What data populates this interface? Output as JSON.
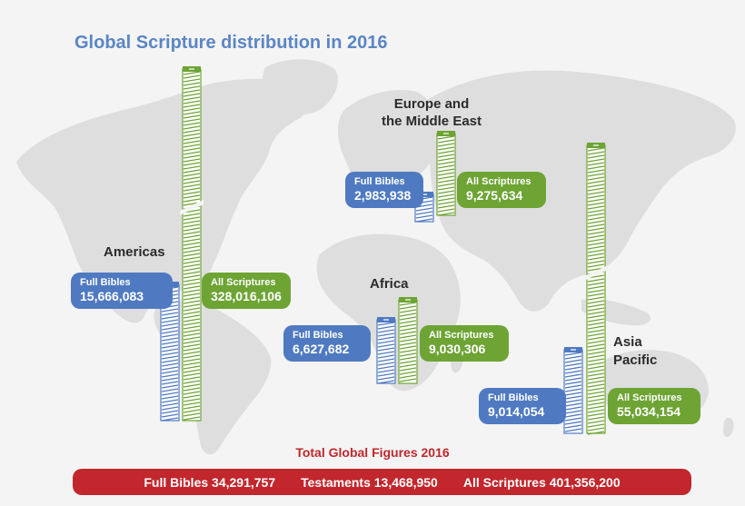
{
  "title": "Global Scripture distribution in 2016",
  "colors": {
    "blue": "#4f7ac1",
    "green": "#6da434",
    "red": "#c1272d",
    "map": "#dcdcdc"
  },
  "chart_data": {
    "type": "bar",
    "title": "Global Scripture distribution in 2016",
    "categories": [
      "Americas",
      "Europe and the Middle East",
      "Africa",
      "Asia Pacific"
    ],
    "series": [
      {
        "name": "Full Bibles",
        "values": [
          15666083,
          2983938,
          6627682,
          9014054
        ]
      },
      {
        "name": "All Scriptures",
        "values": [
          328016106,
          9275634,
          9030306,
          55034154
        ]
      }
    ]
  },
  "regions": [
    {
      "name_lines": [
        "Americas"
      ],
      "full_bibles_label": "Full Bibles",
      "full_bibles": "15,666,083",
      "all_scriptures_label": "All Scriptures",
      "all_scriptures": "328,016,106"
    },
    {
      "name_lines": [
        "Europe and",
        "the Middle East"
      ],
      "full_bibles_label": "Full Bibles",
      "full_bibles": "2,983,938",
      "all_scriptures_label": "All Scriptures",
      "all_scriptures": "9,275,634"
    },
    {
      "name_lines": [
        "Africa"
      ],
      "full_bibles_label": "Full Bibles",
      "full_bibles": "6,627,682",
      "all_scriptures_label": "All Scriptures",
      "all_scriptures": "9,030,306"
    },
    {
      "name_lines": [
        "Asia",
        "Pacific"
      ],
      "full_bibles_label": "Full Bibles",
      "full_bibles": "9,014,054",
      "all_scriptures_label": "All Scriptures",
      "all_scriptures": "55,034,154"
    }
  ],
  "totals": {
    "heading": "Total Global Figures 2016",
    "full_bibles": "Full Bibles 34,291,757",
    "testaments": "Testaments 13,468,950",
    "all_scriptures": "All Scriptures 401,356,200"
  }
}
